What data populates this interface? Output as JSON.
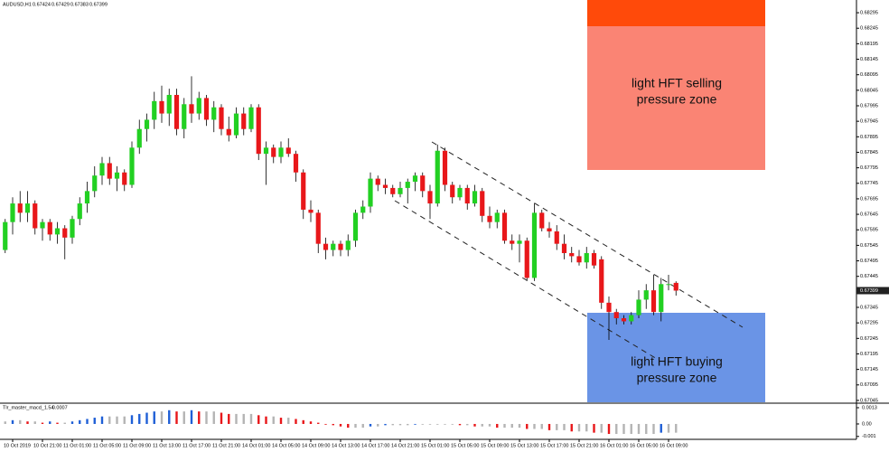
{
  "chart_data": {
    "type": "candlestick",
    "symbol": "AUDUSD,H1",
    "up_color": "#22d022",
    "down_color": "#e8171a",
    "ylim": [
      0.67039,
      0.68336
    ],
    "yticks": [
      0.68295,
      0.68245,
      0.68195,
      0.68145,
      0.68095,
      0.68045,
      0.67995,
      0.67945,
      0.67895,
      0.67845,
      0.67795,
      0.67745,
      0.67695,
      0.67645,
      0.67595,
      0.67545,
      0.67495,
      0.67445,
      0.67345,
      0.67295,
      0.67245,
      0.67195,
      0.67145,
      0.67095,
      0.67045
    ],
    "categories": [
      null,
      "10 Oct 2019",
      null,
      null,
      null,
      "10 Oct 21:00",
      null,
      null,
      null,
      "11 Oct 01:00",
      null,
      null,
      null,
      "11 Oct 05:00",
      null,
      null,
      null,
      "11 Oct 09:00",
      null,
      null,
      null,
      "11 Oct 13:00",
      null,
      null,
      null,
      "11 Oct 17:00",
      null,
      null,
      null,
      "11 Oct 21:00",
      null,
      null,
      null,
      "14 Oct 01:00",
      null,
      null,
      null,
      "14 Oct 05:00",
      null,
      null,
      null,
      "14 Oct 09:00",
      null,
      null,
      null,
      "14 Oct 13:00",
      null,
      null,
      null,
      "14 Oct 17:00",
      null,
      null,
      null,
      "14 Oct 21:00",
      null,
      null,
      null,
      "15 Oct 01:00",
      null,
      null,
      null,
      "15 Oct 05:00",
      null,
      null,
      null,
      "15 Oct 09:00",
      null,
      null,
      null,
      "15 Oct 13:00",
      null,
      null,
      null,
      "15 Oct 17:00",
      null,
      null,
      null,
      "15 Oct 21:00",
      null,
      null,
      null,
      "16 Oct 01:00",
      null,
      null,
      null,
      "16 Oct 05:00",
      null,
      null,
      null,
      "16 Oct 09:00",
      null
    ],
    "ohlc": [
      [
        0.6753,
        0.6763,
        0.6752,
        0.6762
      ],
      [
        0.6762,
        0.677,
        0.6758,
        0.6768
      ],
      [
        0.6768,
        0.6772,
        0.6762,
        0.6765
      ],
      [
        0.6765,
        0.6772,
        0.6762,
        0.6768
      ],
      [
        0.6768,
        0.6769,
        0.6758,
        0.676
      ],
      [
        0.676,
        0.6763,
        0.6756,
        0.6762
      ],
      [
        0.6762,
        0.6763,
        0.6756,
        0.6758
      ],
      [
        0.6758,
        0.6762,
        0.6755,
        0.676
      ],
      [
        0.676,
        0.6761,
        0.675,
        0.6757
      ],
      [
        0.6757,
        0.6764,
        0.6755,
        0.6763
      ],
      [
        0.6763,
        0.677,
        0.6761,
        0.6768
      ],
      [
        0.6768,
        0.6775,
        0.6765,
        0.6772
      ],
      [
        0.6772,
        0.678,
        0.677,
        0.6777
      ],
      [
        0.6777,
        0.6783,
        0.6774,
        0.6781
      ],
      [
        0.6781,
        0.6783,
        0.6774,
        0.6776
      ],
      [
        0.6776,
        0.678,
        0.6772,
        0.6778
      ],
      [
        0.6778,
        0.6779,
        0.6772,
        0.6774
      ],
      [
        0.6774,
        0.6788,
        0.6773,
        0.6786
      ],
      [
        0.6786,
        0.6795,
        0.6784,
        0.6792
      ],
      [
        0.6792,
        0.6797,
        0.6788,
        0.6795
      ],
      [
        0.6795,
        0.6804,
        0.6792,
        0.6801
      ],
      [
        0.6801,
        0.6806,
        0.6794,
        0.6797
      ],
      [
        0.6797,
        0.6805,
        0.6793,
        0.6803
      ],
      [
        0.6803,
        0.6805,
        0.679,
        0.6792
      ],
      [
        0.6792,
        0.6802,
        0.6789,
        0.68
      ],
      [
        0.68,
        0.6809,
        0.6794,
        0.6797
      ],
      [
        0.6797,
        0.6804,
        0.6795,
        0.6802
      ],
      [
        0.6802,
        0.6803,
        0.6793,
        0.6795
      ],
      [
        0.6795,
        0.6801,
        0.6791,
        0.6799
      ],
      [
        0.6799,
        0.68,
        0.679,
        0.6792
      ],
      [
        0.6792,
        0.6796,
        0.6788,
        0.679
      ],
      [
        0.679,
        0.6799,
        0.6789,
        0.6797
      ],
      [
        0.6797,
        0.6799,
        0.679,
        0.6792
      ],
      [
        0.6792,
        0.68,
        0.6791,
        0.6799
      ],
      [
        0.6799,
        0.68,
        0.6782,
        0.6784
      ],
      [
        0.6784,
        0.6788,
        0.6774,
        0.6786
      ],
      [
        0.6786,
        0.6787,
        0.6781,
        0.6783
      ],
      [
        0.6783,
        0.6788,
        0.6781,
        0.6786
      ],
      [
        0.6786,
        0.6789,
        0.6783,
        0.6784
      ],
      [
        0.6784,
        0.6785,
        0.6775,
        0.6778
      ],
      [
        0.6778,
        0.6779,
        0.6763,
        0.6766
      ],
      [
        0.6766,
        0.6769,
        0.6762,
        0.6765
      ],
      [
        0.6765,
        0.6766,
        0.6752,
        0.6755
      ],
      [
        0.6755,
        0.6757,
        0.675,
        0.6753
      ],
      [
        0.6753,
        0.6756,
        0.6751,
        0.6755
      ],
      [
        0.6755,
        0.6756,
        0.6751,
        0.6753
      ],
      [
        0.6753,
        0.6758,
        0.6751,
        0.6756
      ],
      [
        0.6756,
        0.6766,
        0.6754,
        0.6765
      ],
      [
        0.6765,
        0.6769,
        0.6763,
        0.6767
      ],
      [
        0.6767,
        0.6778,
        0.6765,
        0.6776
      ],
      [
        0.6776,
        0.6777,
        0.6772,
        0.6774
      ],
      [
        0.6774,
        0.6776,
        0.6771,
        0.6773
      ],
      [
        0.6773,
        0.6774,
        0.677,
        0.6771
      ],
      [
        0.6771,
        0.6775,
        0.677,
        0.6773
      ],
      [
        0.6773,
        0.6776,
        0.6768,
        0.6775
      ],
      [
        0.6775,
        0.6778,
        0.6772,
        0.6777
      ],
      [
        0.6777,
        0.6778,
        0.677,
        0.6772
      ],
      [
        0.6772,
        0.6774,
        0.6763,
        0.6768
      ],
      [
        0.6768,
        0.6787,
        0.6767,
        0.6785
      ],
      [
        0.6785,
        0.6786,
        0.6772,
        0.6774
      ],
      [
        0.6774,
        0.6775,
        0.6768,
        0.677
      ],
      [
        0.677,
        0.6774,
        0.6769,
        0.6773
      ],
      [
        0.6773,
        0.6774,
        0.6766,
        0.6768
      ],
      [
        0.6768,
        0.6774,
        0.6767,
        0.6772
      ],
      [
        0.6772,
        0.6773,
        0.6762,
        0.6764
      ],
      [
        0.6764,
        0.6767,
        0.676,
        0.6762
      ],
      [
        0.6762,
        0.6766,
        0.676,
        0.6765
      ],
      [
        0.6765,
        0.6766,
        0.6755,
        0.6756
      ],
      [
        0.6756,
        0.6758,
        0.6753,
        0.6755
      ],
      [
        0.6755,
        0.6758,
        0.6749,
        0.6756
      ],
      [
        0.6756,
        0.6757,
        0.6743,
        0.6744
      ],
      [
        0.6744,
        0.6768,
        0.6743,
        0.6765
      ],
      [
        0.6765,
        0.6766,
        0.6759,
        0.676
      ],
      [
        0.676,
        0.6762,
        0.6757,
        0.6759
      ],
      [
        0.6759,
        0.6761,
        0.6753,
        0.6755
      ],
      [
        0.6755,
        0.6758,
        0.675,
        0.6752
      ],
      [
        0.6752,
        0.6754,
        0.6749,
        0.6751
      ],
      [
        0.6751,
        0.6753,
        0.6748,
        0.6749
      ],
      [
        0.6749,
        0.6754,
        0.6747,
        0.6752
      ],
      [
        0.6752,
        0.6753,
        0.6747,
        0.6748
      ],
      [
        0.675,
        0.6751,
        0.6734,
        0.6736
      ],
      [
        0.6736,
        0.6738,
        0.6724,
        0.6733
      ],
      [
        0.6733,
        0.6734,
        0.6729,
        0.6731
      ],
      [
        0.6731,
        0.6732,
        0.6729,
        0.673
      ],
      [
        0.673,
        0.6733,
        0.6729,
        0.6732
      ],
      [
        0.6732,
        0.674,
        0.6731,
        0.6737
      ],
      [
        0.6737,
        0.6742,
        0.6734,
        0.674
      ],
      [
        0.674,
        0.6745,
        0.6732,
        0.6733
      ],
      [
        0.6733,
        0.6744,
        0.673,
        0.6742
      ],
      [
        0.6742,
        0.6745,
        0.674,
        0.6742
      ],
      [
        0.67424,
        0.67429,
        0.67383,
        0.67399
      ]
    ],
    "zones": [
      {
        "lines": [
          "light HFT selling",
          "pressure zone"
        ]
      },
      {
        "lines": [
          "light HFT buying",
          "pressure zone"
        ]
      }
    ],
    "indicator": {
      "type": "histogram",
      "name": "Tlr_master_macd_1.54",
      "rise_color": "#1f5fd6",
      "fall_color": "#e8171a",
      "flat_color": "#b4b4b4",
      "ylim": [
        -0.00116,
        0.00159
      ],
      "yticks": [
        0.0013,
        {
          "value": 0,
          "label": "0.00"
        },
        -0.001
      ],
      "values": [
        0.0002,
        0.0003,
        0.0003,
        0.0002,
        0.0002,
        0.0001,
        0.0002,
        0.0001,
        0.0001,
        0.0002,
        0.0003,
        0.0004,
        0.0005,
        0.0006,
        0.0006,
        0.0006,
        0.0006,
        0.0007,
        0.0008,
        0.0009,
        0.001,
        0.001,
        0.0011,
        0.001,
        0.001,
        0.0011,
        0.001,
        0.001,
        0.001,
        0.0009,
        0.0008,
        0.0008,
        0.0008,
        0.0008,
        0.0007,
        0.0006,
        0.0006,
        0.0005,
        0.0005,
        0.0004,
        0.0003,
        0.0002,
        0.0001,
        0.0,
        -0.0001,
        -0.0002,
        -0.0003,
        -0.0003,
        -0.0003,
        -0.0002,
        -0.0002,
        -0.0001,
        -0.0001,
        -0.0001,
        -0.0001,
        0.0,
        0.0,
        0.0,
        0.0,
        0.0,
        0.0,
        -0.0001,
        -0.0001,
        -0.0002,
        -0.0002,
        -0.0002,
        -0.0003,
        -0.0003,
        -0.0003,
        -0.0003,
        -0.0004,
        -0.0004,
        -0.0004,
        -0.0005,
        -0.0005,
        -0.0005,
        -0.0006,
        -0.0006,
        -0.0006,
        -0.0007,
        -0.0007,
        -0.0008,
        -0.0008,
        -0.0008,
        -0.0008,
        -0.0008,
        -0.0008,
        -0.0008,
        -0.0007,
        -0.0007,
        -0.0007
      ]
    }
  }
}
